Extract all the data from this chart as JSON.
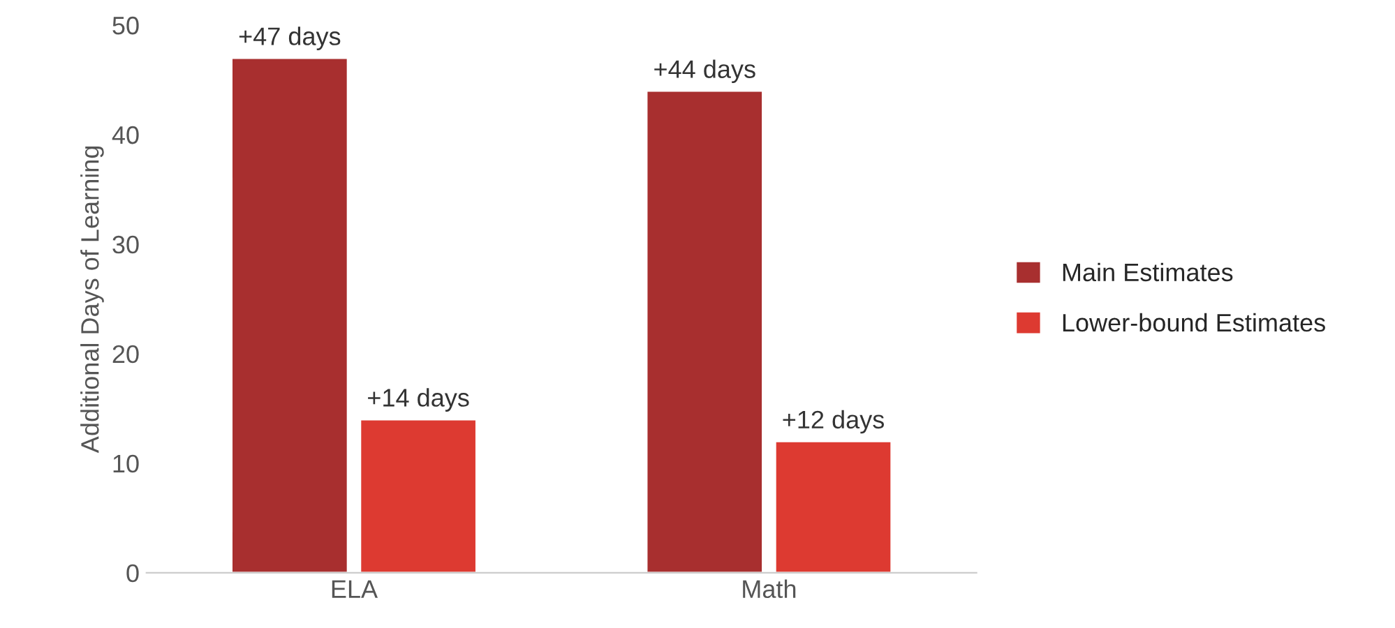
{
  "chart_data": {
    "type": "bar",
    "ylabel": "Additional Days of Learning",
    "categories": [
      "ELA",
      "Math"
    ],
    "series": [
      {
        "name": "Main Estimates",
        "color": "#a82f2f",
        "values": [
          47,
          44
        ],
        "value_labels": [
          "+47 days",
          "+44 days"
        ]
      },
      {
        "name": "Lower-bound Estimates",
        "color": "#dd3a31",
        "values": [
          14,
          12
        ],
        "value_labels": [
          "+14 days",
          "+12 days"
        ]
      }
    ],
    "ylim": [
      0,
      50
    ],
    "yticks": [
      0,
      10,
      20,
      30,
      40,
      50
    ],
    "grid": false,
    "legend": "right"
  }
}
